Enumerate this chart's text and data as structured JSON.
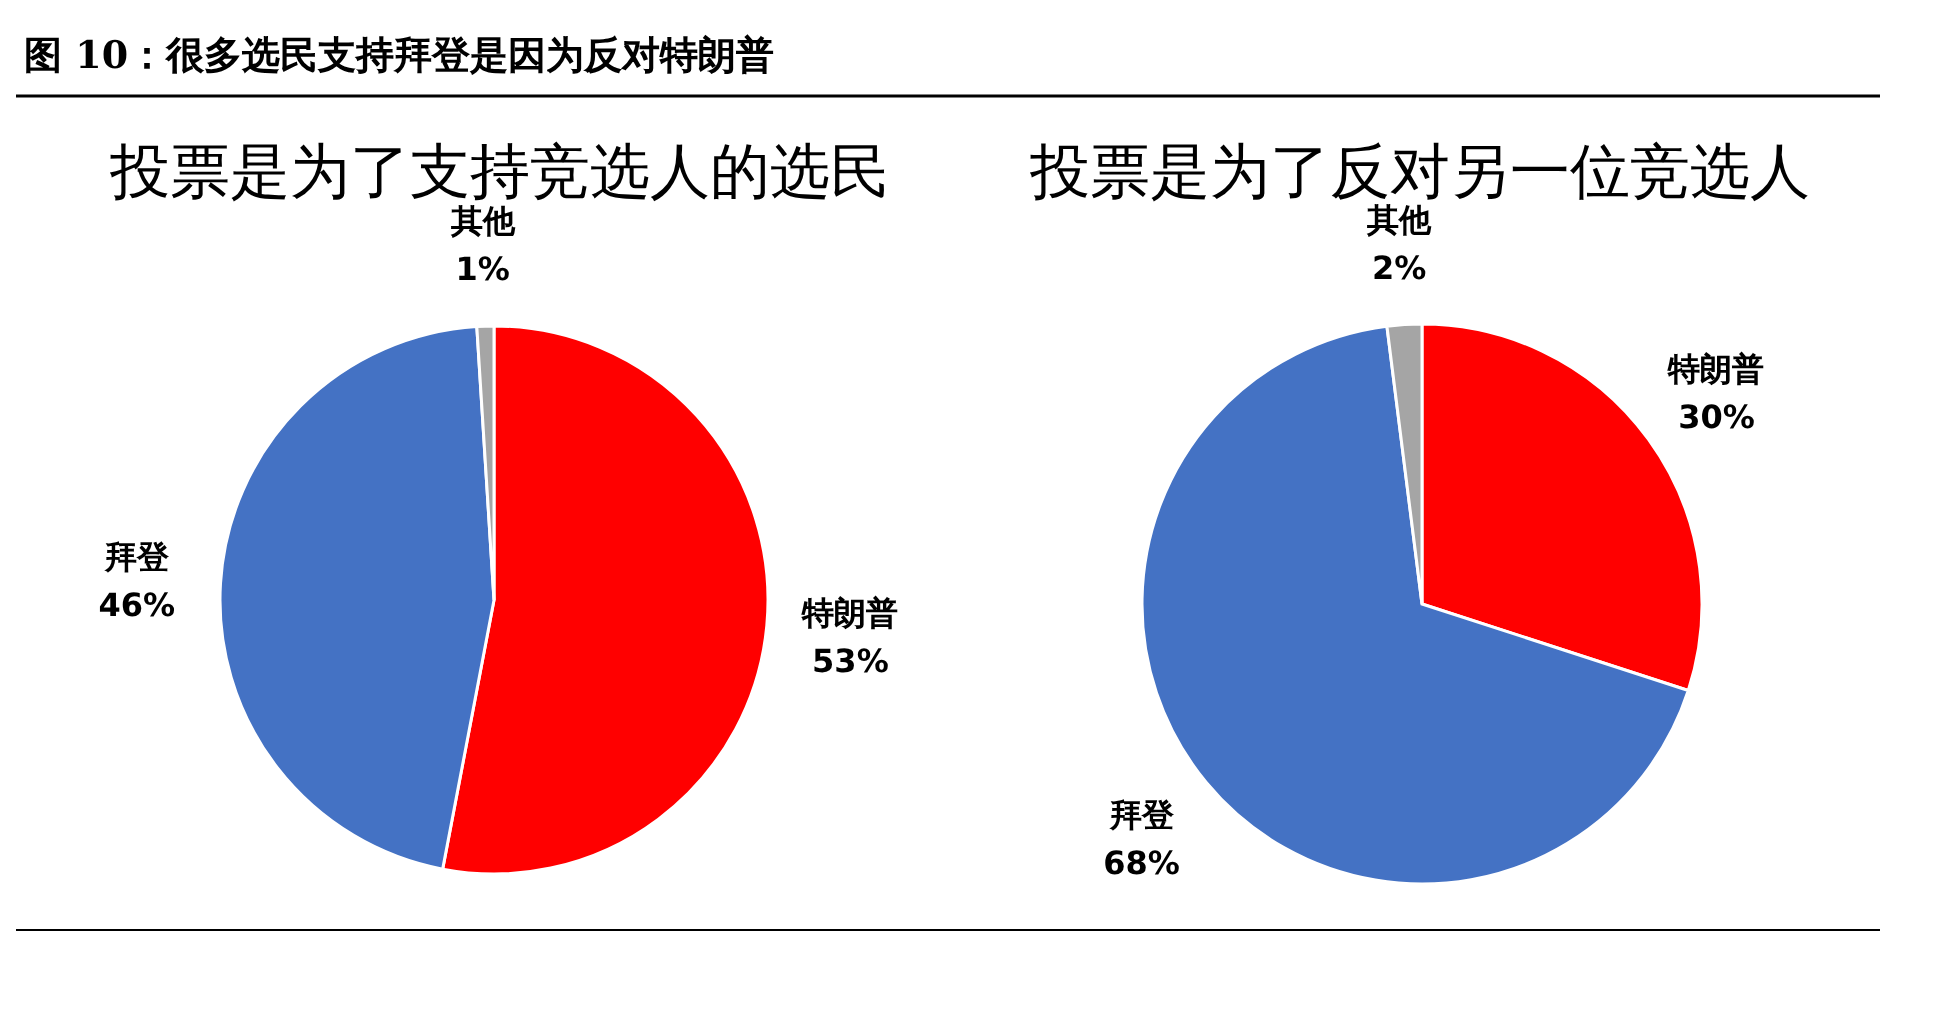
{
  "chart_data": [
    {
      "type": "pie",
      "title": "投票是为了支持竞选人的选民",
      "annotations": [
        "图 10：很多选民支持拜登是因为反对特朗普"
      ],
      "categories": [
        "特朗普",
        "拜登",
        "其他"
      ],
      "values": [
        53,
        46,
        1
      ],
      "colors": [
        "#ff0000",
        "#4472c4",
        "#a5a5a5"
      ],
      "value_labels": [
        "53%",
        "46%",
        "1%"
      ],
      "legend": false
    },
    {
      "type": "pie",
      "title": "投票是为了反对另一位竞选人",
      "categories": [
        "特朗普",
        "拜登",
        "其他"
      ],
      "values": [
        30,
        68,
        2
      ],
      "colors": [
        "#ff0000",
        "#4472c4",
        "#a5a5a5"
      ],
      "value_labels": [
        "30%",
        "68%",
        "2%"
      ],
      "legend": false
    }
  ]
}
